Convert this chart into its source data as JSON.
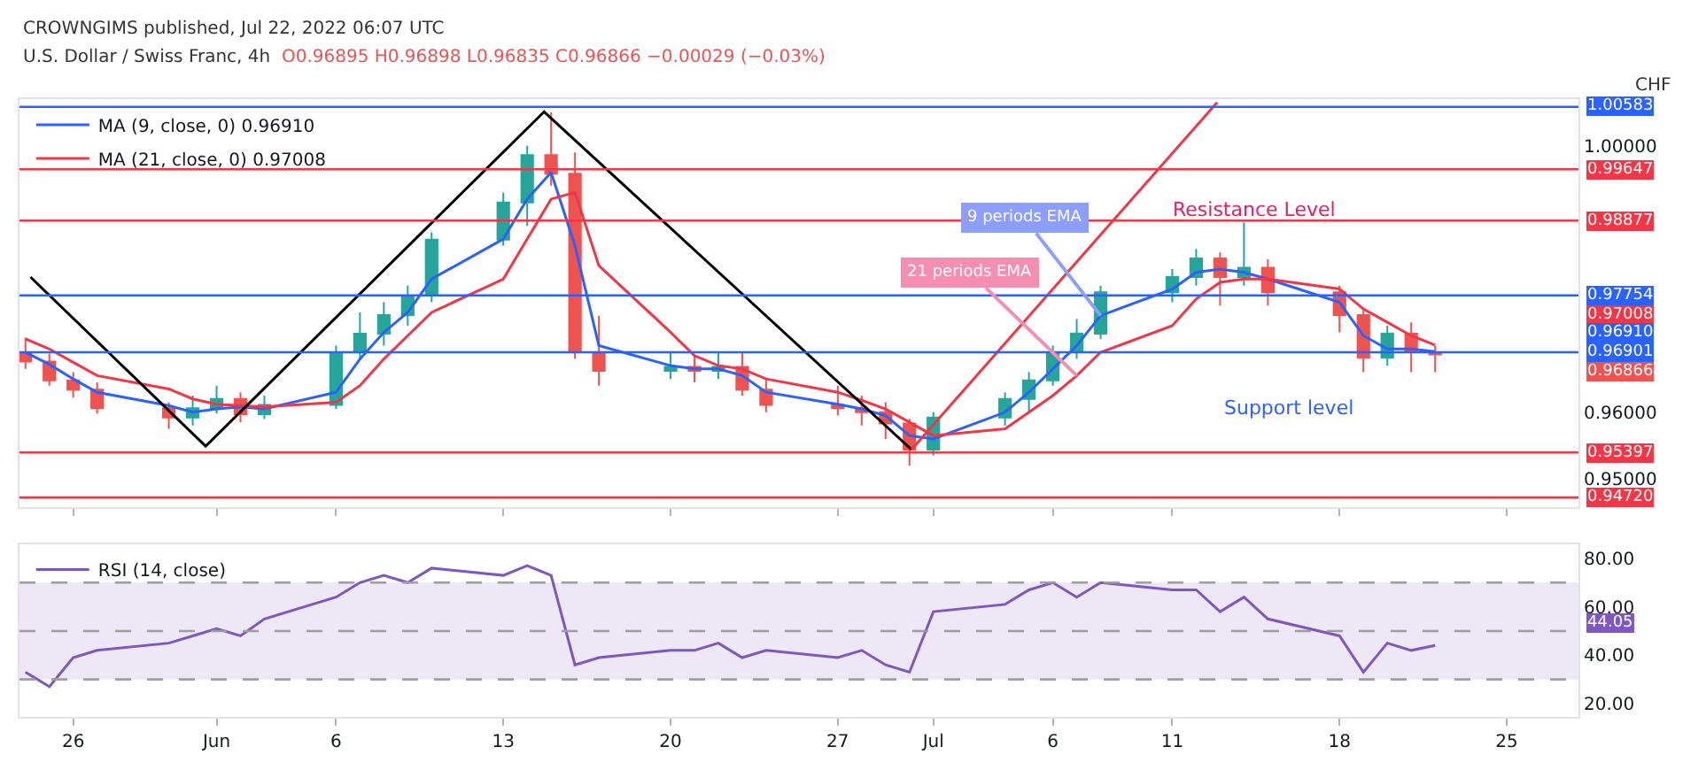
{
  "chart_data": [
    {
      "type": "candlestick",
      "title": "U.S. Dollar / Swiss Franc, 4h",
      "subtitle": "O0.96895 H0.96898 L0.96835 C0.96866 −0.00029 (−0.03%)",
      "ylabel": "CHF",
      "x": [
        "2022-05-24",
        "2022-05-25",
        "2022-05-26",
        "2022-05-27",
        "2022-05-30",
        "2022-05-31",
        "2022-06-01",
        "2022-06-02",
        "2022-06-03",
        "2022-06-06",
        "2022-06-07",
        "2022-06-08",
        "2022-06-09",
        "2022-06-10",
        "2022-06-13",
        "2022-06-14",
        "2022-06-15",
        "2022-06-16",
        "2022-06-17",
        "2022-06-20",
        "2022-06-21",
        "2022-06-22",
        "2022-06-23",
        "2022-06-24",
        "2022-06-27",
        "2022-06-28",
        "2022-06-29",
        "2022-06-30",
        "2022-07-01",
        "2022-07-04",
        "2022-07-05",
        "2022-07-06",
        "2022-07-07",
        "2022-07-08",
        "2022-07-11",
        "2022-07-12",
        "2022-07-13",
        "2022-07-14",
        "2022-07-15",
        "2022-07-18",
        "2022-07-19",
        "2022-07-20",
        "2022-07-21",
        "2022-07-22"
      ],
      "ohlc": [
        [
          0.969,
          0.9712,
          0.9665,
          0.9676
        ],
        [
          0.9676,
          0.9688,
          0.964,
          0.9648
        ],
        [
          0.9648,
          0.966,
          0.9622,
          0.9634
        ],
        [
          0.9634,
          0.9645,
          0.9598,
          0.9606
        ],
        [
          0.9606,
          0.9615,
          0.9575,
          0.9592
        ],
        [
          0.9592,
          0.9625,
          0.958,
          0.9606
        ],
        [
          0.9606,
          0.964,
          0.9598,
          0.962
        ],
        [
          0.962,
          0.963,
          0.9585,
          0.9597
        ],
        [
          0.9597,
          0.9625,
          0.959,
          0.9611
        ],
        [
          0.9611,
          0.97,
          0.9605,
          0.969
        ],
        [
          0.969,
          0.975,
          0.968,
          0.9718
        ],
        [
          0.9718,
          0.9765,
          0.97,
          0.9746
        ],
        [
          0.9746,
          0.979,
          0.973,
          0.9775
        ],
        [
          0.9775,
          0.987,
          0.9765,
          0.9859
        ],
        [
          0.9859,
          0.993,
          0.985,
          0.9915
        ],
        [
          0.9915,
          1.0,
          0.988,
          0.9986
        ],
        [
          0.9986,
          1.005,
          0.994,
          0.9958
        ],
        [
          0.9958,
          0.999,
          0.968,
          0.969
        ],
        [
          0.969,
          0.9745,
          0.964,
          0.9662
        ],
        [
          0.9662,
          0.969,
          0.965,
          0.9668
        ],
        [
          0.9668,
          0.9685,
          0.9645,
          0.9662
        ],
        [
          0.9662,
          0.969,
          0.965,
          0.9668
        ],
        [
          0.9668,
          0.969,
          0.9625,
          0.9634
        ],
        [
          0.9634,
          0.965,
          0.96,
          0.9611
        ],
        [
          0.9611,
          0.964,
          0.9595,
          0.9606
        ],
        [
          0.9606,
          0.9625,
          0.958,
          0.96
        ],
        [
          0.96,
          0.9615,
          0.956,
          0.9583
        ],
        [
          0.9583,
          0.959,
          0.952,
          0.9544
        ],
        [
          0.9544,
          0.96,
          0.9535,
          0.9592
        ],
        [
          0.9592,
          0.963,
          0.958,
          0.962
        ],
        [
          0.962,
          0.966,
          0.96,
          0.9648
        ],
        [
          0.9648,
          0.97,
          0.964,
          0.969
        ],
        [
          0.969,
          0.974,
          0.968,
          0.9718
        ],
        [
          0.9718,
          0.979,
          0.971,
          0.978
        ],
        [
          0.978,
          0.9815,
          0.9765,
          0.9803
        ],
        [
          0.9803,
          0.9845,
          0.979,
          0.9831
        ],
        [
          0.9831,
          0.984,
          0.976,
          0.9803
        ],
        [
          0.9803,
          0.9885,
          0.979,
          0.9817
        ],
        [
          0.9817,
          0.983,
          0.976,
          0.978
        ],
        [
          0.978,
          0.979,
          0.972,
          0.9746
        ],
        [
          0.9746,
          0.9755,
          0.966,
          0.9682
        ],
        [
          0.9682,
          0.973,
          0.967,
          0.9718
        ],
        [
          0.9718,
          0.9735,
          0.966,
          0.969
        ],
        [
          0.969,
          0.97,
          0.966,
          0.96866
        ]
      ],
      "series": [
        {
          "type": "line",
          "name": "MA (9, close, 0) 0.96910",
          "color": "#2962ff",
          "values": [
            0.969,
            0.9672,
            0.965,
            0.963,
            0.961,
            0.96,
            0.9605,
            0.9608,
            0.9605,
            0.963,
            0.968,
            0.972,
            0.975,
            0.98,
            0.986,
            0.992,
            0.996,
            0.985,
            0.97,
            0.967,
            0.9665,
            0.9665,
            0.9655,
            0.963,
            0.9612,
            0.9605,
            0.9595,
            0.9565,
            0.956,
            0.96,
            0.963,
            0.9665,
            0.97,
            0.9745,
            0.9785,
            0.981,
            0.9815,
            0.981,
            0.98,
            0.9765,
            0.9715,
            0.9695,
            0.9695,
            0.9691
          ]
        },
        {
          "type": "line",
          "name": "MA (21, close, 0) 0.97008",
          "color": "#f23645",
          "values": [
            0.971,
            0.9695,
            0.9675,
            0.9655,
            0.9635,
            0.962,
            0.9612,
            0.961,
            0.9608,
            0.9615,
            0.964,
            0.968,
            0.9715,
            0.975,
            0.98,
            0.986,
            0.992,
            0.993,
            0.982,
            0.972,
            0.9685,
            0.967,
            0.9665,
            0.965,
            0.963,
            0.9618,
            0.9605,
            0.9585,
            0.9565,
            0.9575,
            0.96,
            0.9625,
            0.9655,
            0.969,
            0.973,
            0.977,
            0.9795,
            0.98,
            0.98,
            0.9785,
            0.9755,
            0.9735,
            0.9715,
            0.97008
          ]
        },
        {
          "type": "line",
          "color": "#000000",
          "x": [
            "2022-05-24T05:00",
            "2022-05-31T13:00",
            "2022-06-14T17:00",
            "2022-06-30T02:00"
          ],
          "values": [
            0.9803,
            0.9549,
            1.0051,
            0.9544
          ]
        },
        {
          "type": "line",
          "color": "#f23645",
          "x": [
            "2022-06-30T02:00",
            "2022-07-12T21:00"
          ],
          "values": [
            0.9544,
            1.0065
          ]
        }
      ],
      "ref_lines": [
        {
          "axis": "y",
          "value": 1.00583,
          "label": "1.00583",
          "color": "#2962ff"
        },
        {
          "axis": "y",
          "value": 0.99647,
          "label": "0.99647",
          "color": "#f23645"
        },
        {
          "axis": "y",
          "value": 0.98877,
          "label": "0.98877",
          "color": "#f23645"
        },
        {
          "axis": "y",
          "value": 0.97754,
          "label": "0.97754",
          "color": "#2962ff"
        },
        {
          "axis": "y",
          "value": 0.96901,
          "label": "0.96901",
          "color": "#2962ff"
        },
        {
          "axis": "y",
          "value": 0.95397,
          "label": "0.95397",
          "color": "#f23645"
        },
        {
          "axis": "y",
          "value": 0.9472,
          "label": "0.94720",
          "color": "#f23645"
        }
      ],
      "annotations": [
        "CROWNGIMS published, Jul 22, 2022 06:07 UTC",
        "Resistance Level",
        "Support level",
        {
          "text": "9 periods EMA",
          "x": "2022-07-08",
          "y": 0.9745
        },
        {
          "text": "21 periods EMA",
          "x": "2022-07-07",
          "y": 0.9655
        },
        "0.97008",
        "0.96910",
        "0.96866"
      ],
      "xlim": [
        "2022-05-23T18:00",
        "2022-07-28T00:00"
      ],
      "xticks": [
        {
          "value": "2022-05-26",
          "label": null
        },
        {
          "value": "2022-06-01",
          "label": null
        },
        {
          "value": "2022-06-06",
          "label": null
        },
        {
          "value": "2022-06-13",
          "label": null
        },
        {
          "value": "2022-06-20",
          "label": null
        },
        {
          "value": "2022-06-27",
          "label": null
        },
        {
          "value": "2022-07-01",
          "label": null
        },
        {
          "value": "2022-07-06",
          "label": null
        },
        {
          "value": "2022-07-11",
          "label": null
        },
        {
          "value": "2022-07-18",
          "label": null
        },
        {
          "value": "2022-07-25",
          "label": null
        }
      ],
      "ylim": [
        0.9458,
        1.007
      ],
      "yticks": [
        {
          "value": 0.95,
          "label": "0.95000"
        },
        {
          "value": 0.96,
          "label": "0.96000"
        },
        {
          "value": 1.0,
          "label": "1.00000"
        }
      ],
      "tick_labels": "y",
      "legend": "top left",
      "grid": false
    },
    {
      "type": "line",
      "x": [
        "2022-05-24",
        "2022-05-25",
        "2022-05-26",
        "2022-05-27",
        "2022-05-30",
        "2022-05-31",
        "2022-06-01",
        "2022-06-02",
        "2022-06-03",
        "2022-06-06",
        "2022-06-07",
        "2022-06-08",
        "2022-06-09",
        "2022-06-10",
        "2022-06-13",
        "2022-06-14",
        "2022-06-15",
        "2022-06-16",
        "2022-06-17",
        "2022-06-20",
        "2022-06-21",
        "2022-06-22",
        "2022-06-23",
        "2022-06-24",
        "2022-06-27",
        "2022-06-28",
        "2022-06-29",
        "2022-06-30",
        "2022-07-01",
        "2022-07-04",
        "2022-07-05",
        "2022-07-06",
        "2022-07-07",
        "2022-07-08",
        "2022-07-11",
        "2022-07-12",
        "2022-07-13",
        "2022-07-14",
        "2022-07-15",
        "2022-07-18",
        "2022-07-19",
        "2022-07-20",
        "2022-07-21",
        "2022-07-22"
      ],
      "series": [
        {
          "name": "RSI (14, close)",
          "color": "#7e57c2",
          "values": [
            33,
            27,
            39,
            42,
            45,
            48,
            51,
            48,
            55,
            64,
            70,
            73,
            70,
            76,
            73,
            77,
            73,
            36,
            39,
            42,
            42,
            45,
            39,
            42,
            39,
            42,
            36,
            33,
            58,
            61,
            67,
            70,
            64,
            70,
            67,
            67,
            58,
            64,
            55,
            48,
            33,
            45,
            42,
            44.05
          ]
        }
      ],
      "bands": [
        {
          "axis": "y",
          "from": 30,
          "to": 70,
          "color": "#ede7f6"
        }
      ],
      "ref_lines": [
        {
          "axis": "y",
          "value": 70,
          "color": "#9e9e9e",
          "line_style": "dashed"
        },
        {
          "axis": "y",
          "value": 50,
          "color": "#9e9e9e",
          "line_style": "dashed"
        },
        {
          "axis": "y",
          "value": 30,
          "color": "#9e9e9e",
          "line_style": "dashed"
        }
      ],
      "annotations": [
        "44.05"
      ],
      "xlim": [
        "2022-05-23T18:00",
        "2022-07-28T00:00"
      ],
      "xticks": [
        {
          "value": "2022-05-26",
          "label": "26"
        },
        {
          "value": "2022-06-01",
          "label": "Jun"
        },
        {
          "value": "2022-06-06",
          "label": "6"
        },
        {
          "value": "2022-06-13",
          "label": "13"
        },
        {
          "value": "2022-06-20",
          "label": "20"
        },
        {
          "value": "2022-06-27",
          "label": "27"
        },
        {
          "value": "2022-07-01",
          "label": "Jul"
        },
        {
          "value": "2022-07-06",
          "label": "6"
        },
        {
          "value": "2022-07-11",
          "label": "11"
        },
        {
          "value": "2022-07-18",
          "label": "18"
        },
        {
          "value": "2022-07-25",
          "label": "25"
        }
      ],
      "ylim": [
        14.5,
        86
      ],
      "yticks": [
        {
          "value": 20,
          "label": "20.00"
        },
        {
          "value": 40,
          "label": "40.00"
        },
        {
          "value": 60,
          "label": "60.00"
        },
        {
          "value": 80,
          "label": "80.00"
        }
      ],
      "legend": "top left",
      "grid": false
    }
  ]
}
